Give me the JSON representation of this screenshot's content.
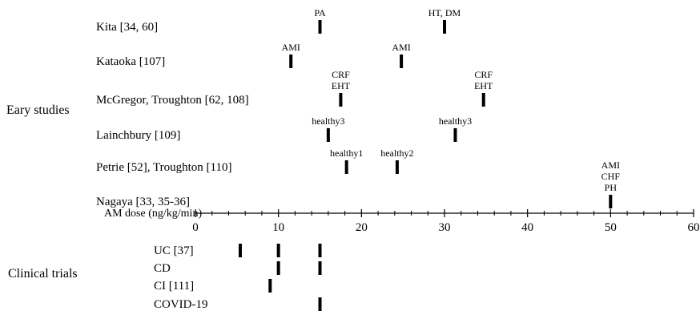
{
  "group_labels": {
    "early": "Eary studies",
    "clinical": "Clinical trials"
  },
  "axis": {
    "label": "AM dose (ng/kg/min)",
    "min": 0,
    "max": 60,
    "ticks": [
      0,
      10,
      20,
      30,
      40,
      50,
      60
    ],
    "tick_labels": [
      "0",
      "10",
      "20",
      "30",
      "40",
      "50",
      "60"
    ]
  },
  "early_studies": [
    {
      "label": "Kita [34, 60]",
      "doses": [
        {
          "dose": 15,
          "note": [
            "PA"
          ]
        },
        {
          "dose": 30,
          "note": [
            "HT, DM"
          ]
        }
      ]
    },
    {
      "label": "Kataoka [107]",
      "doses": [
        {
          "dose": 11.5,
          "note": [
            "AMI"
          ]
        },
        {
          "dose": 24.8,
          "note": [
            "AMI"
          ]
        }
      ]
    },
    {
      "label": "McGregor, Troughton [62, 108]",
      "doses": [
        {
          "dose": 17.5,
          "note": [
            "CRF",
            "EHT"
          ]
        },
        {
          "dose": 34.7,
          "note": [
            "CRF",
            "EHT"
          ]
        }
      ]
    },
    {
      "label": "Lainchbury [109]",
      "doses": [
        {
          "dose": 16,
          "note": [
            "healthy3"
          ]
        },
        {
          "dose": 31.3,
          "note": [
            "healthy3"
          ]
        }
      ]
    },
    {
      "label": "Petrie [52], Troughton [110]",
      "doses": [
        {
          "dose": 18.2,
          "note": [
            "healthy1"
          ]
        },
        {
          "dose": 24.3,
          "note": [
            "healthy2"
          ]
        }
      ]
    },
    {
      "label": "Nagaya [33, 35-36]",
      "doses": [
        {
          "dose": 50,
          "note": [
            "AMI",
            "CHF",
            "PH"
          ]
        }
      ]
    }
  ],
  "clinical_trials": [
    {
      "label": "UC [37]",
      "doses": [
        5.4,
        10,
        15
      ]
    },
    {
      "label": "CD",
      "doses": [
        10,
        15
      ]
    },
    {
      "label": "CI [111]",
      "doses": [
        9
      ]
    },
    {
      "label": "COVID-19",
      "doses": [
        15
      ]
    }
  ]
}
